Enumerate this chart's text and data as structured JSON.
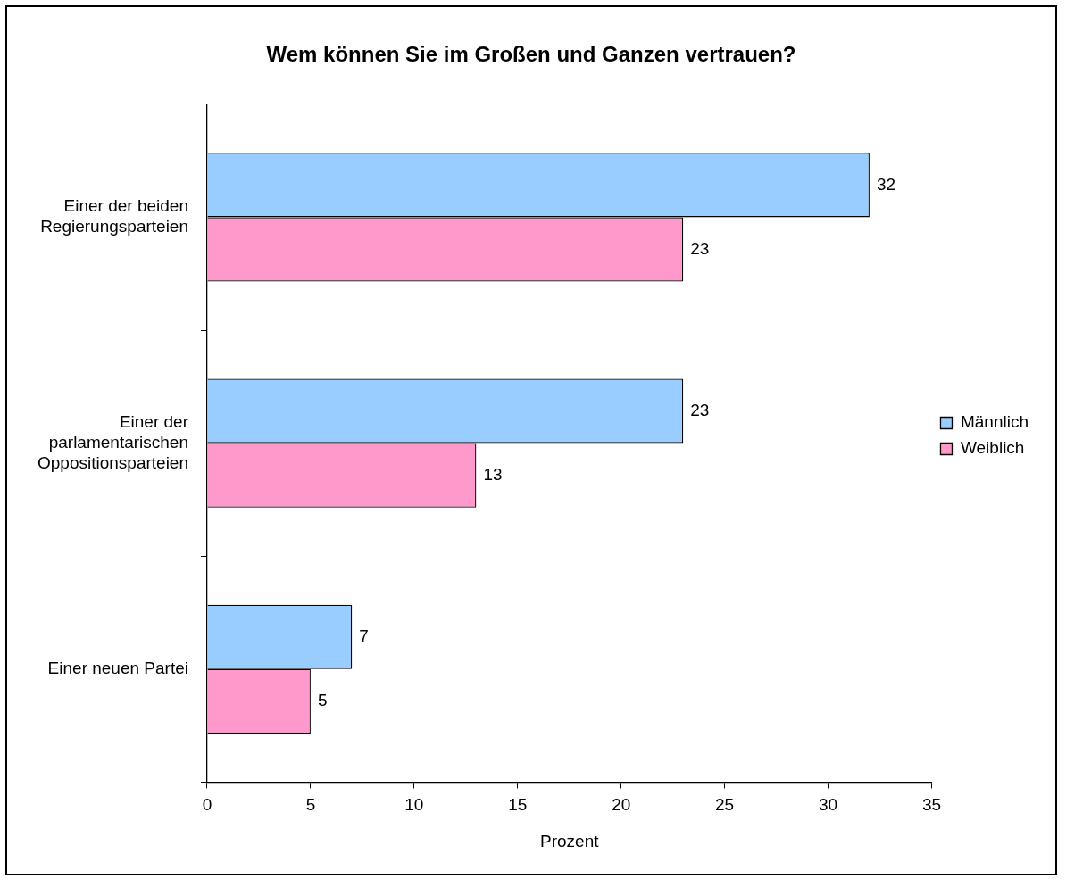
{
  "chart_data": {
    "type": "bar",
    "orientation": "horizontal",
    "title": "Wem können Sie im Großen und Ganzen vertrauen?",
    "xlabel": "Prozent",
    "categories": [
      "Einer der beiden Regierungsparteien",
      "Einer der parlamentarischen Oppositionsparteien",
      "Einer neuen Partei"
    ],
    "series": [
      {
        "name": "Männlich",
        "color": "#99ccff",
        "values": [
          32,
          23,
          7
        ]
      },
      {
        "name": "Weiblich",
        "color": "#ff99cc",
        "values": [
          23,
          13,
          5
        ]
      }
    ],
    "xlim": [
      0,
      35
    ],
    "xticks": [
      0,
      5,
      10,
      15,
      20,
      25,
      30,
      35
    ],
    "grid": false,
    "legend": "right",
    "data_labels": true
  }
}
